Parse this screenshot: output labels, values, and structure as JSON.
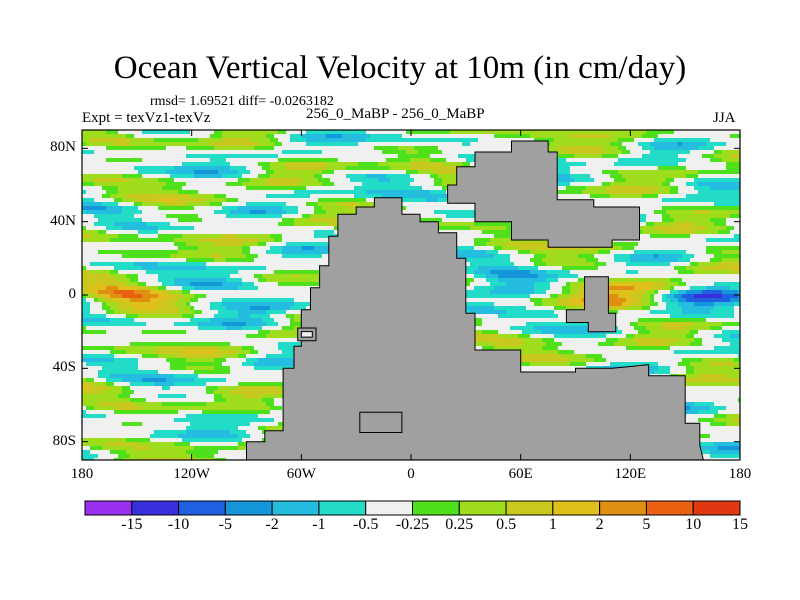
{
  "header": {
    "title": "Ocean Vertical Velocity at 10m (in cm/day)",
    "stats": "rmsd= 1.69521 diff= -0.0263182",
    "experiment": "Expt = texVz1-texVz",
    "case": "256_0_MaBP - 256_0_MaBP",
    "season": "JJA"
  },
  "chart_data": {
    "type": "heatmap",
    "title": "Ocean Vertical Velocity at 10m (in cm/day)",
    "subtitle": "256_0_MaBP - 256_0_MaBP",
    "xlabel": "",
    "ylabel": "",
    "x_ticks": [
      "180",
      "120W",
      "60W",
      "0",
      "60E",
      "120E",
      "180"
    ],
    "x_tick_values": [
      -180,
      -120,
      -60,
      0,
      60,
      120,
      180
    ],
    "y_ticks": [
      "80N",
      "40N",
      "0",
      "40S",
      "80S"
    ],
    "y_tick_values": [
      80,
      40,
      0,
      -40,
      -80
    ],
    "xlim": [
      -180,
      180
    ],
    "ylim": [
      -90,
      90
    ],
    "colorbar_labels": [
      "-15",
      "-10",
      "-5",
      "-2",
      "-1",
      "-0.5",
      "-0.25",
      "0.25",
      "0.5",
      "1",
      "2",
      "5",
      "10",
      "15"
    ],
    "colorbar_colors": [
      "#9a30f0",
      "#3a2fdc",
      "#1f5fe0",
      "#1596d8",
      "#24bde0",
      "#23dcc8",
      "#f0f0f0",
      "#4fe01c",
      "#9edc1c",
      "#c8c81e",
      "#e0c01a",
      "#e09010",
      "#e86010",
      "#e03810"
    ],
    "land_color": "#a0a0a0"
  }
}
